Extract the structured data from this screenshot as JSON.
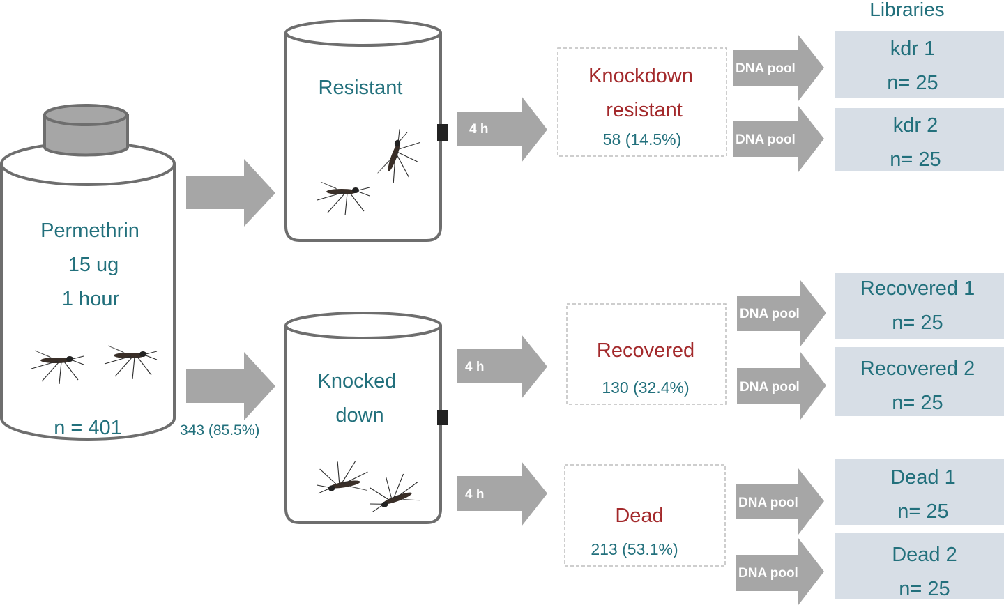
{
  "main_can": {
    "lines": [
      "Permethrin",
      "15 ug",
      "1 hour"
    ],
    "n": "n = 401"
  },
  "knocked_count": "343 (85.5%)",
  "jars": {
    "resistant": "Resistant",
    "knocked_line1": "Knocked",
    "knocked_line2": "down"
  },
  "time_labels": [
    "4 h",
    "4 h",
    "4 h"
  ],
  "outcomes": [
    {
      "label_lines": [
        "Knockdown",
        "resistant"
      ],
      "count": "58 (14.5%)"
    },
    {
      "label_lines": [
        "Recovered"
      ],
      "count": "130 (32.4%)"
    },
    {
      "label_lines": [
        "Dead"
      ],
      "count": "213 (53.1%)"
    }
  ],
  "pool_label": "DNA pool",
  "libraries": {
    "title": "Libraries",
    "items": [
      {
        "name": "kdr 1",
        "n": "n= 25"
      },
      {
        "name": "kdr 2",
        "n": "n= 25"
      },
      {
        "name": "Recovered 1",
        "n": "n= 25"
      },
      {
        "name": "Recovered 2",
        "n": "n= 25"
      },
      {
        "name": "Dead 1",
        "n": "n= 25"
      },
      {
        "name": "Dead 2",
        "n": "n= 25"
      }
    ]
  },
  "colors": {
    "teal_text": "#22707c",
    "red_text": "#a3292b",
    "arrow": "#a6a6a6",
    "library_box": "#d7dee6"
  }
}
